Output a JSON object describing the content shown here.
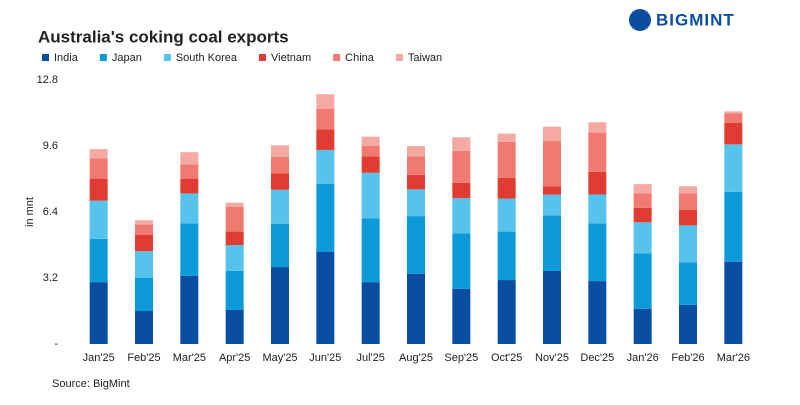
{
  "chart_data": {
    "type": "stacked-bar",
    "title": "Australia's coking coal exports",
    "logo": "BIGMINT",
    "y_label": "in mnt",
    "source": "Source: BigMint",
    "categories": [
      "Jan'25",
      "Feb'25",
      "Mar'25",
      "Apr'25",
      "May'25",
      "Jun'25",
      "Jul'25",
      "Aug'25",
      "Sep'25",
      "Oct'25",
      "Nov'25",
      "Dec'25",
      "Jan'26",
      "Feb'26",
      "Mar'26"
    ],
    "series": [
      {
        "name": "India",
        "color": "#0a4ea2",
        "values": [
          3.0,
          1.6,
          3.3,
          1.65,
          3.73,
          4.46,
          3.0,
          3.4,
          2.67,
          3.1,
          3.54,
          3.05,
          1.7,
          1.9,
          3.98
        ]
      },
      {
        "name": "Japan",
        "color": "#0e9ad8",
        "values": [
          2.1,
          1.6,
          2.55,
          1.9,
          2.1,
          3.3,
          3.1,
          2.8,
          2.7,
          2.35,
          2.7,
          2.8,
          2.7,
          2.05,
          3.4
        ]
      },
      {
        "name": "South Korea",
        "color": "#55c3ec",
        "values": [
          1.85,
          1.3,
          1.45,
          1.25,
          1.65,
          1.65,
          2.2,
          1.3,
          1.7,
          1.6,
          1.0,
          1.4,
          1.5,
          1.8,
          2.3
        ]
      },
      {
        "name": "Vietnam",
        "color": "#e03c31",
        "values": [
          1.05,
          0.8,
          0.7,
          0.65,
          0.8,
          1.0,
          0.8,
          0.7,
          0.75,
          1.0,
          0.4,
          1.1,
          0.7,
          0.75,
          1.05
        ]
      },
      {
        "name": "China",
        "color": "#f07a72",
        "values": [
          1.0,
          0.5,
          0.7,
          1.2,
          0.8,
          1.0,
          0.5,
          0.9,
          1.55,
          1.75,
          2.2,
          1.9,
          0.7,
          0.8,
          0.45
        ]
      },
      {
        "name": "Taiwan",
        "color": "#f4a9a2",
        "values": [
          0.45,
          0.2,
          0.6,
          0.2,
          0.55,
          0.7,
          0.45,
          0.5,
          0.65,
          0.4,
          0.7,
          0.5,
          0.45,
          0.35,
          0.1
        ]
      }
    ],
    "ylim": [
      0,
      12.8
    ],
    "yticks": [
      {
        "value": 0,
        "label": "-"
      },
      3.2,
      6.4,
      9.6,
      12.8
    ]
  }
}
